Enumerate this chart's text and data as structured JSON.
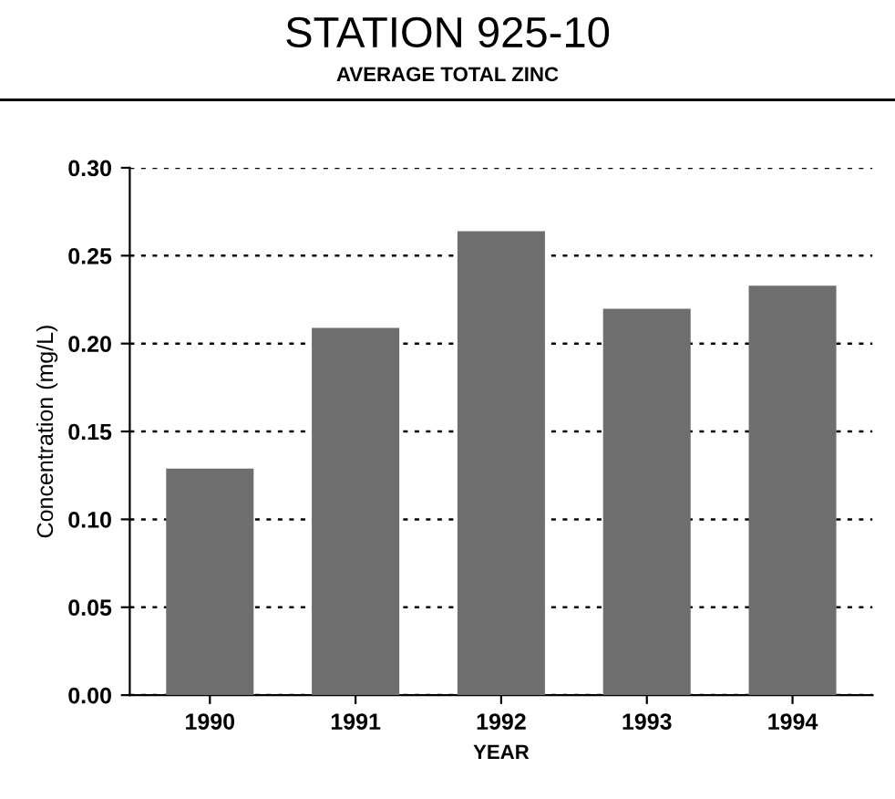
{
  "chart_data": {
    "type": "bar",
    "title": "STATION 925-10",
    "subtitle": "AVERAGE TOTAL ZINC",
    "xlabel": "YEAR",
    "ylabel": "Concentration (mg/L)",
    "categories": [
      "1990",
      "1991",
      "1992",
      "1993",
      "1994"
    ],
    "values": [
      0.128,
      0.208,
      0.263,
      0.219,
      0.232
    ],
    "color": "#6e6e6e",
    "ylim": [
      0,
      0.3
    ],
    "yticks": [
      {
        "value": 0,
        "label": "0.00"
      },
      {
        "value": 0.05,
        "label": "0.05"
      },
      {
        "value": 0.1,
        "label": "0.10"
      },
      {
        "value": 0.15,
        "label": "0.15"
      },
      {
        "value": 0.2,
        "label": "0.20"
      },
      {
        "value": 0.25,
        "label": "0.25"
      },
      {
        "value": 0.3,
        "label": "0.30"
      }
    ],
    "grid": "y"
  }
}
